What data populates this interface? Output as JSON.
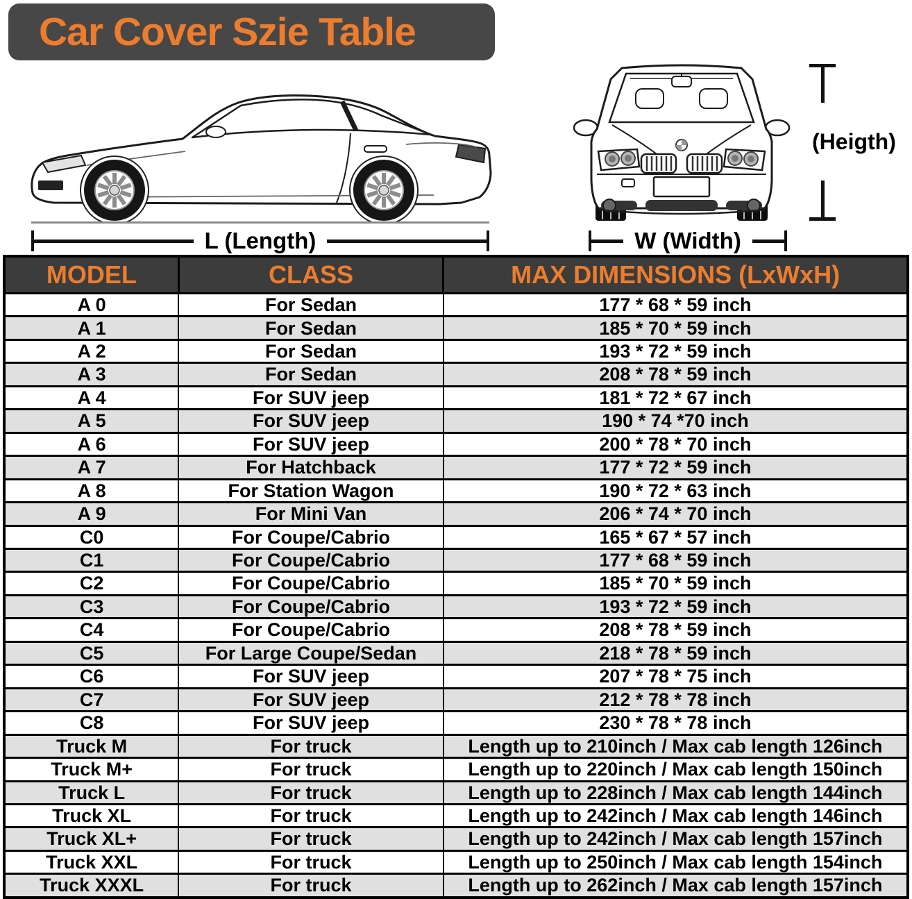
{
  "title": "Car Cover Szie Table",
  "diagram": {
    "length_label": "L (Length)",
    "width_label": "W (Width)",
    "height_label": "(Heigth)"
  },
  "table": {
    "columns": [
      "MODEL",
      "CLASS",
      "MAX DIMENSIONS (LxWxH)"
    ],
    "rows": [
      [
        "A 0",
        "For Sedan",
        "177 * 68 * 59 inch"
      ],
      [
        "A 1",
        "For Sedan",
        "185 * 70 * 59 inch"
      ],
      [
        "A 2",
        "For Sedan",
        "193 * 72 * 59 inch"
      ],
      [
        "A 3",
        "For Sedan",
        "208 * 78 * 59 inch"
      ],
      [
        "A 4",
        "For SUV jeep",
        "181 * 72 * 67 inch"
      ],
      [
        "A 5",
        "For SUV jeep",
        "190 * 74 *70 inch"
      ],
      [
        "A 6",
        "For SUV jeep",
        "200 * 78 * 70 inch"
      ],
      [
        "A 7",
        "For Hatchback",
        "177 * 72 * 59 inch"
      ],
      [
        "A 8",
        "For Station Wagon",
        "190 * 72 * 63 inch"
      ],
      [
        "A 9",
        "For Mini Van",
        "206 * 74 * 70 inch"
      ],
      [
        "C0",
        "For Coupe/Cabrio",
        "165 * 67 * 57 inch"
      ],
      [
        "C1",
        "For Coupe/Cabrio",
        "177 * 68 * 59 inch"
      ],
      [
        "C2",
        "For Coupe/Cabrio",
        "185 * 70 * 59 inch"
      ],
      [
        "C3",
        "For Coupe/Cabrio",
        "193 * 72 * 59 inch"
      ],
      [
        "C4",
        "For Coupe/Cabrio",
        "208 * 78 * 59 inch"
      ],
      [
        "C5",
        "For Large Coupe/Sedan",
        "218 * 78 * 59 inch"
      ],
      [
        "C6",
        "For SUV jeep",
        "207 * 78 * 75 inch"
      ],
      [
        "C7",
        "For SUV jeep",
        "212 * 78 * 78 inch"
      ],
      [
        "C8",
        "For SUV jeep",
        "230 * 78 * 78 inch"
      ],
      [
        "Truck M",
        "For truck",
        "Length up to 210inch / Max cab length 126inch"
      ],
      [
        "Truck M+",
        "For truck",
        "Length up to 220inch / Max cab length 150inch"
      ],
      [
        "Truck L",
        "For truck",
        "Length up to 228inch / Max cab length 144inch"
      ],
      [
        "Truck XL",
        "For truck",
        "Length up to 242inch / Max cab length 146inch"
      ],
      [
        "Truck XL+",
        "For truck",
        "Length up to 242inch / Max cab length 157inch"
      ],
      [
        "Truck XXL",
        "For truck",
        "Length up to 250inch / Max cab length 154inch"
      ],
      [
        "Truck XXXL",
        "For truck",
        "Length up to 262inch / Max cab length 157inch"
      ]
    ]
  },
  "colors": {
    "accent": "#ED7D2E",
    "banner-bg": "#474747",
    "header-bg": "#3C3C3C",
    "row-alt": "#E0E0E0"
  }
}
